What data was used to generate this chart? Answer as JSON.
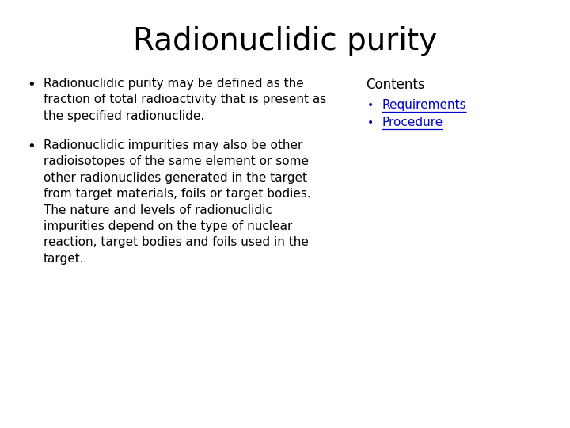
{
  "title": "Radionuclidic purity",
  "background_color": "#ffffff",
  "title_color": "#000000",
  "title_fontsize": 28,
  "bullet1": "Radionuclidic purity may be defined as the\nfraction of total radioactivity that is present as\nthe specified radionuclide.",
  "bullet2": "Radionuclidic impurities may also be other\nradioisotopes of the same element or some\nother radionuclides generated in the target\nfrom target materials, foils or target bodies.\nThe nature and levels of radionuclidic\nimpurities depend on the type of nuclear\nreaction, target bodies and foils used in the\ntarget.",
  "bullet_fontsize": 11,
  "bullet_color": "#000000",
  "contents_title": "Contents",
  "contents_item1": "Requirements",
  "contents_item2": "Procedure",
  "contents_color": "#0000cc",
  "contents_title_fontsize": 12,
  "contents_item_fontsize": 11,
  "fig_width": 7.2,
  "fig_height": 5.4,
  "dpi": 100
}
